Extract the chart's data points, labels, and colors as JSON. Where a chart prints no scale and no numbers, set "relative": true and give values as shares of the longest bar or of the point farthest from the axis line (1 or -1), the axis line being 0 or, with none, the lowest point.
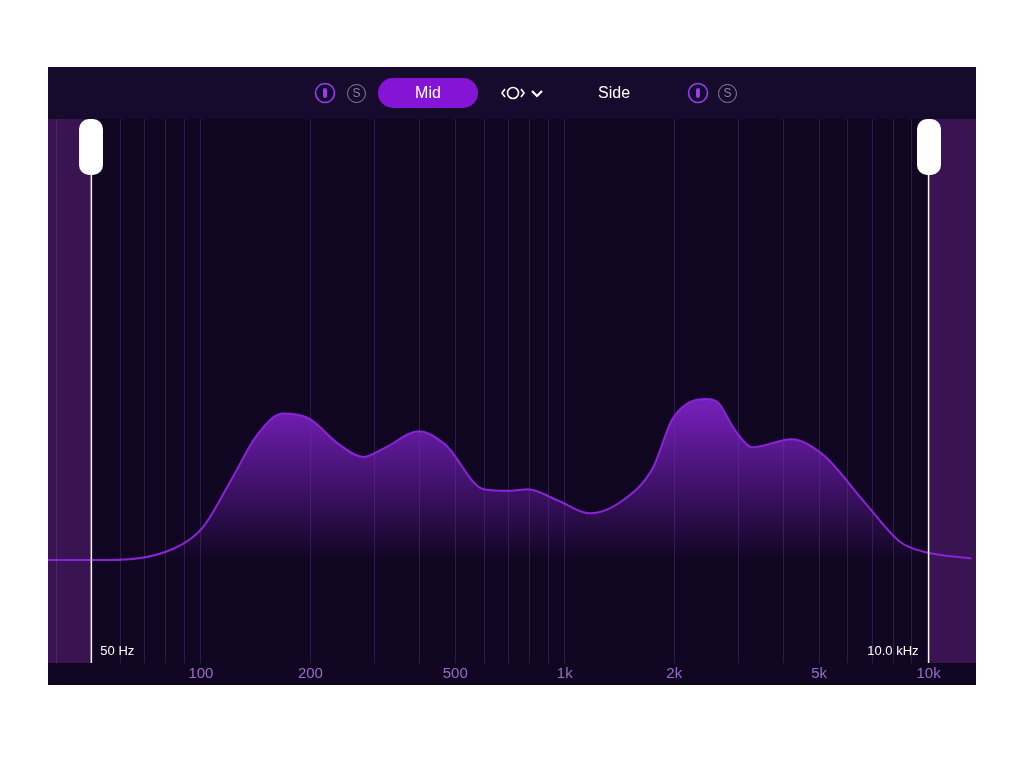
{
  "chart_data": {
    "type": "area",
    "relative": true,
    "annotations": [
      "S",
      "Mid",
      "Side",
      "S"
    ],
    "x": [
      38,
      55.5,
      84,
      101,
      122,
      142,
      168,
      198,
      239,
      279,
      322,
      397,
      468,
      599,
      711,
      791,
      957,
      1172,
      1443,
      1745,
      1982,
      2443,
      2633,
      2930,
      3283,
      4204,
      5149,
      6716,
      8378,
      9747,
      13120
    ],
    "series": [
      {
        "color": "#8a24d8",
        "values": [
          0,
          0,
          0.07,
          0.2,
          0.51,
          0.77,
          0.91,
          0.88,
          0.72,
          0.64,
          0.7,
          0.8,
          0.72,
          0.44,
          0.43,
          0.44,
          0.37,
          0.29,
          0.37,
          0.57,
          0.88,
          1,
          0.98,
          0.81,
          0.7,
          0.75,
          0.65,
          0.35,
          0.11,
          0.05,
          0.01
        ]
      }
    ],
    "log": "x",
    "xlim": [
      38,
      13500
    ],
    "xticks": [
      {
        "value": 40,
        "label": null
      },
      {
        "value": 60,
        "label": null
      },
      {
        "value": 70,
        "label": null
      },
      {
        "value": 80,
        "label": null
      },
      {
        "value": 90,
        "label": null
      },
      100,
      200,
      {
        "value": 300,
        "label": null
      },
      {
        "value": 400,
        "label": null
      },
      500,
      {
        "value": 600,
        "label": null
      },
      {
        "value": 700,
        "label": null
      },
      {
        "value": 800,
        "label": null
      },
      {
        "value": 900,
        "label": null
      },
      {
        "value": 1000,
        "label": "1k"
      },
      {
        "value": 2000,
        "label": "2k"
      },
      {
        "value": 3000,
        "label": null
      },
      {
        "value": 4000,
        "label": null
      },
      {
        "value": 5000,
        "label": "5k"
      },
      {
        "value": 6000,
        "label": null
      },
      {
        "value": 7000,
        "label": null
      },
      {
        "value": 8000,
        "label": null
      },
      {
        "value": 9000,
        "label": null
      },
      {
        "value": 10000,
        "label": "10k"
      }
    ],
    "grid": "x",
    "legend": false,
    "ref_lines": [
      {
        "axis": "x",
        "value": 50,
        "label": "50 Hz",
        "color": "#ffffff"
      },
      {
        "axis": "x",
        "value": 10000,
        "label": "10.0 kHz",
        "color": "#ffffff"
      }
    ],
    "bands": [
      {
        "axis": "x",
        "from": 38,
        "to": 50,
        "color": "#3a1452"
      },
      {
        "axis": "x",
        "from": 10000,
        "to": 13500,
        "color": "#3a1452"
      }
    ]
  }
}
